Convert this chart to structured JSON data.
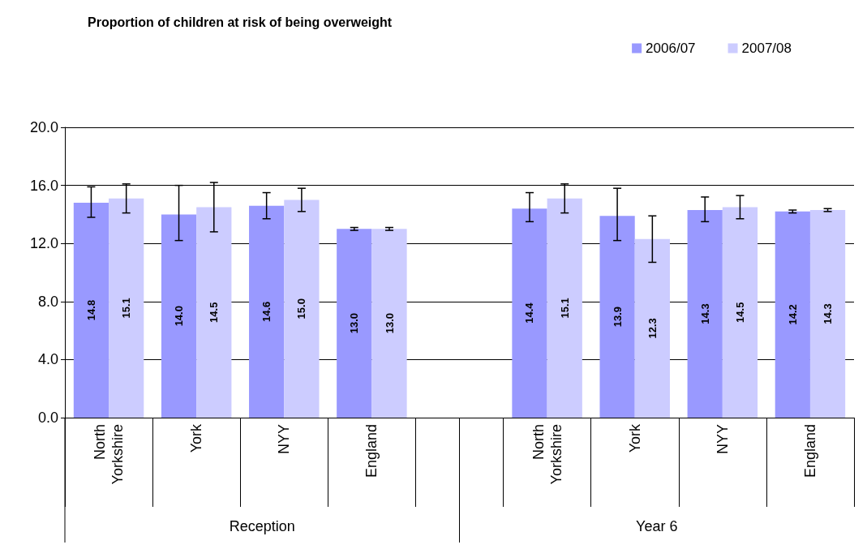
{
  "chart_data": {
    "type": "bar",
    "title": "Proportion of children at risk of being overweight",
    "categories": [
      "North Yorkshire",
      "York",
      "NYY",
      "England",
      null,
      "North Yorkshire",
      "York",
      "NYY",
      "England"
    ],
    "series": [
      {
        "name": "2006/07",
        "color": "#9999ff",
        "values": [
          14.8,
          14.0,
          14.6,
          13.0,
          null,
          14.4,
          13.9,
          14.3,
          14.2
        ],
        "value_labels": [
          "14.8",
          "14.0",
          "14.6",
          "13.0",
          null,
          "14.4",
          "13.9",
          "14.3",
          "14.2"
        ],
        "errors": [
          [
            13.8,
            15.9
          ],
          [
            12.2,
            16.0
          ],
          [
            13.7,
            15.5
          ],
          [
            12.9,
            13.1
          ],
          null,
          [
            13.5,
            15.5
          ],
          [
            12.2,
            15.8
          ],
          [
            13.5,
            15.2
          ],
          [
            14.1,
            14.3
          ]
        ]
      },
      {
        "name": "2007/08",
        "color": "#ccccff",
        "values": [
          15.1,
          14.5,
          15.0,
          13.0,
          null,
          15.1,
          12.3,
          14.5,
          14.3
        ],
        "value_labels": [
          "15.1",
          "14.5",
          "15.0",
          "13.0",
          null,
          "15.1",
          "12.3",
          "14.5",
          "14.3"
        ],
        "errors": [
          [
            14.1,
            16.1
          ],
          [
            12.8,
            16.2
          ],
          [
            14.2,
            15.8
          ],
          [
            12.9,
            13.1
          ],
          null,
          [
            14.1,
            16.1
          ],
          [
            10.7,
            13.9
          ],
          [
            13.7,
            15.3
          ],
          [
            14.2,
            14.4
          ]
        ]
      }
    ],
    "annotations": [
      "Reception",
      "Year 6"
    ],
    "ylim": [
      0,
      20
    ],
    "yticks": [
      {
        "value": 0,
        "label": "0.0"
      },
      {
        "value": 4,
        "label": "4.0"
      },
      {
        "value": 8,
        "label": "8.0"
      },
      {
        "value": 12,
        "label": "12.0"
      },
      {
        "value": 16,
        "label": "16.0"
      },
      {
        "value": 20,
        "label": "20.0"
      }
    ],
    "grid": "y",
    "legend": "top right"
  }
}
